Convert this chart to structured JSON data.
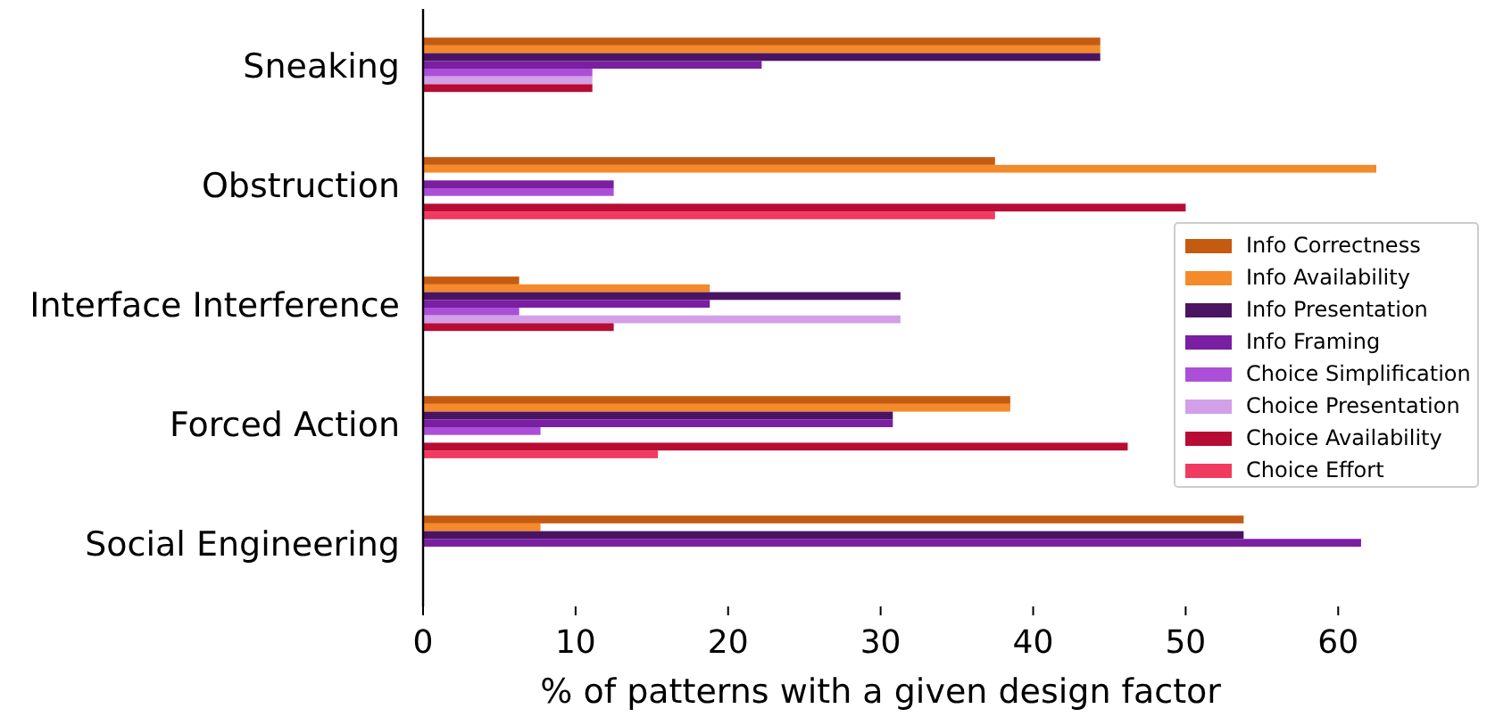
{
  "chart_data": {
    "type": "bar",
    "orientation": "horizontal",
    "xlabel": "% of patterns with a given design factor",
    "categories": [
      "Sneaking",
      "Obstruction",
      "Interface Interference",
      "Forced Action",
      "Social Engineering"
    ],
    "series": [
      {
        "name": "Info Correctness",
        "color": "#c55a11",
        "values": [
          44.4,
          37.5,
          6.3,
          38.5,
          53.8
        ]
      },
      {
        "name": "Info Availability",
        "color": "#f58a2a",
        "values": [
          44.4,
          62.5,
          18.8,
          38.5,
          7.7
        ]
      },
      {
        "name": "Info Presentation",
        "color": "#4a1463",
        "values": [
          44.4,
          0,
          31.3,
          30.8,
          53.8
        ]
      },
      {
        "name": "Info Framing",
        "color": "#7a1fa2",
        "values": [
          22.2,
          12.5,
          18.8,
          30.8,
          61.5
        ]
      },
      {
        "name": "Choice Simplification",
        "color": "#ab4fd8",
        "values": [
          11.1,
          12.5,
          6.3,
          7.7,
          0
        ]
      },
      {
        "name": "Choice Presentation",
        "color": "#d29fe8",
        "values": [
          11.1,
          0,
          31.3,
          0,
          0
        ]
      },
      {
        "name": "Choice Availability",
        "color": "#b80c35",
        "values": [
          11.1,
          50,
          12.5,
          46.2,
          0
        ]
      },
      {
        "name": "Choice Effort",
        "color": "#f03a5f",
        "values": [
          0,
          37.5,
          0,
          15.4,
          0
        ]
      }
    ],
    "xlim": [
      0,
      62.5
    ],
    "xticks": [
      0,
      10,
      20,
      30,
      40,
      50,
      60
    ],
    "grid": false,
    "legend": "right"
  }
}
